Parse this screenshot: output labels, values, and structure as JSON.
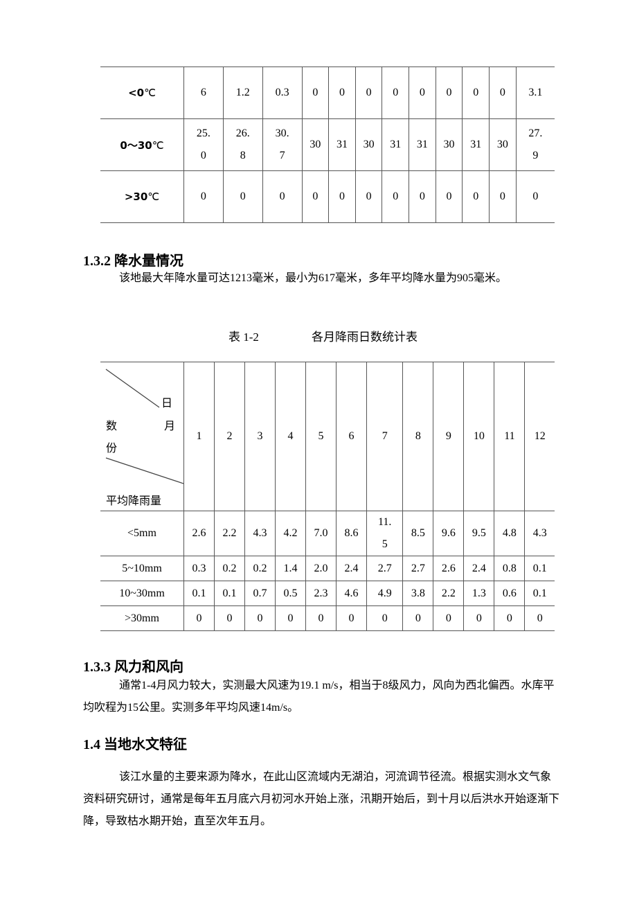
{
  "table1": {
    "rows": [
      {
        "label": "<0",
        "unit": "℃",
        "values": [
          "6",
          "1.2",
          "0.3",
          "0",
          "0",
          "0",
          "0",
          "0",
          "0",
          "0",
          "0",
          "3.1"
        ]
      },
      {
        "label": "0～30",
        "unit": "℃",
        "values": [
          "25.0",
          "26.8",
          "30.7",
          "30",
          "31",
          "30",
          "31",
          "31",
          "30",
          "31",
          "30",
          "27.9"
        ]
      },
      {
        "label": ">30",
        "unit": "℃",
        "values": [
          "0",
          "0",
          "0",
          "0",
          "0",
          "0",
          "0",
          "0",
          "0",
          "0",
          "0",
          "0"
        ]
      }
    ]
  },
  "section_132": {
    "heading": "1.3.2 降水量情况",
    "text": "该地最大年降水量可达1213毫米，最小为617毫米，多年平均降水量为905毫米。"
  },
  "table2": {
    "caption_no": "表 1-2",
    "caption_title": "各月降雨日数统计表",
    "header_corner": {
      "ri": "日",
      "shu": "数",
      "yue": "月",
      "fen": "份",
      "rain": "平均降雨量"
    },
    "months": [
      "1",
      "2",
      "3",
      "4",
      "5",
      "6",
      "7",
      "8",
      "9",
      "10",
      "11",
      "12"
    ],
    "rows": [
      {
        "label": "<5mm",
        "values": [
          "2.6",
          "2.2",
          "4.3",
          "4.2",
          "7.0",
          "8.6",
          "11.5",
          "8.5",
          "9.6",
          "9.5",
          "4.8",
          "4.3"
        ]
      },
      {
        "label": "5~10mm",
        "values": [
          "0.3",
          "0.2",
          "0.2",
          "1.4",
          "2.0",
          "2.4",
          "2.7",
          "2.7",
          "2.6",
          "2.4",
          "0.8",
          "0.1"
        ]
      },
      {
        "label": "10~30mm",
        "values": [
          "0.1",
          "0.1",
          "0.7",
          "0.5",
          "2.3",
          "4.6",
          "4.9",
          "3.8",
          "2.2",
          "1.3",
          "0.6",
          "0.1"
        ]
      },
      {
        "label": ">30mm",
        "values": [
          "0",
          "0",
          "0",
          "0",
          "0",
          "0",
          "0",
          "0",
          "0",
          "0",
          "0",
          "0"
        ]
      }
    ]
  },
  "section_133": {
    "heading": "1.3.3 风力和风向",
    "text": "通常1-4月风力较大，实测最大风速为19.1 m/s，相当于8级风力，风向为西北偏西。水库平均吹程为15公里。实测多年平均风速14m/s。"
  },
  "section_14": {
    "heading": "1.4 当地水文特征",
    "text": "该江水量的主要来源为降水，在此山区流域内无湖泊，河流调节径流。根据实测水文气象资料研究研讨，通常是每年五月底六月初河水开始上涨，汛期开始后，到十月以后洪水开始逐渐下降，导致枯水期开始，直至次年五月。"
  }
}
